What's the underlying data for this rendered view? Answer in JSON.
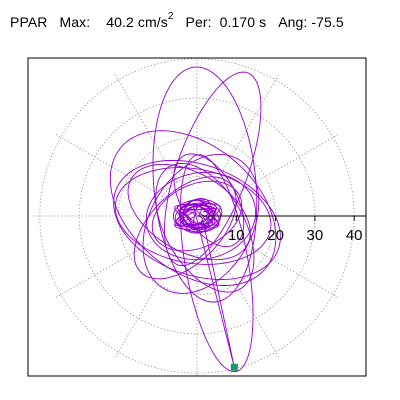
{
  "header": {
    "station": "PPAR",
    "max_label": "Max:",
    "max_value": "40.2",
    "max_unit": "cm/s",
    "max_unit_exp": "2",
    "period_label": "Per:",
    "period_value": "0.170 s",
    "angle_label": "Ang:",
    "angle_value": "-75.5"
  },
  "colors": {
    "trace": "#9400d3",
    "grid": "#888888",
    "axis": "#000000",
    "end_marker": "#1a9a6a",
    "frame": "#000000",
    "background": "#ffffff"
  },
  "chart_data": {
    "type": "scatter",
    "description_kind": "polar particle-motion hodogram",
    "rings": [
      10,
      20,
      30,
      40
    ],
    "tick_labels": [
      "10",
      "20",
      "30",
      "40"
    ],
    "radial_max": 42,
    "spokes_deg": [
      0,
      30,
      60,
      90,
      120,
      150,
      180,
      210,
      240,
      270,
      300,
      330
    ],
    "end_point": {
      "x": 9.5,
      "y": -38.5
    },
    "trace_lobes": [
      {
        "cx": 0,
        "cy": 0,
        "a": 12,
        "b": 8,
        "rot": 25
      },
      {
        "cx": -2,
        "cy": 1,
        "a": 17,
        "b": 10,
        "rot": -30
      },
      {
        "cx": 1,
        "cy": -2,
        "a": 19,
        "b": 13,
        "rot": 60
      },
      {
        "cx": 2,
        "cy": 8,
        "a": 30,
        "b": 13,
        "rot": 95
      },
      {
        "cx": 4,
        "cy": 12,
        "a": 26,
        "b": 9,
        "rot": 70
      },
      {
        "cx": -1,
        "cy": 2,
        "a": 24,
        "b": 16,
        "rot": 140
      },
      {
        "cx": 0,
        "cy": -1,
        "a": 22,
        "b": 14,
        "rot": 160
      },
      {
        "cx": 5,
        "cy": -12,
        "a": 28,
        "b": 8,
        "rot": 100
      },
      {
        "cx": 1,
        "cy": 0,
        "a": 14,
        "b": 11,
        "rot": 10
      },
      {
        "cx": -3,
        "cy": -3,
        "a": 16,
        "b": 9,
        "rot": 45
      },
      {
        "cx": 3,
        "cy": 4,
        "a": 13,
        "b": 7,
        "rot": -60
      },
      {
        "cx": 0,
        "cy": 0,
        "a": 6,
        "b": 4,
        "rot": 0
      },
      {
        "cx": 0,
        "cy": 1,
        "a": 4,
        "b": 3,
        "rot": 40
      },
      {
        "cx": -1,
        "cy": 0,
        "a": 20,
        "b": 12,
        "rot": -10
      },
      {
        "cx": 2,
        "cy": -3,
        "a": 18,
        "b": 10,
        "rot": 120
      }
    ]
  }
}
